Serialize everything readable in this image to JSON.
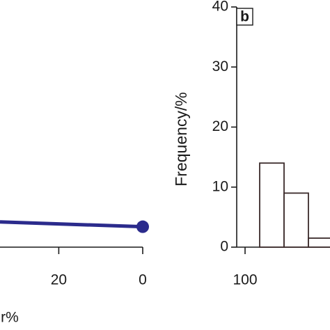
{
  "chart_data": [
    {
      "type": "line",
      "x_label": "r%",
      "x": [
        34,
        0
      ],
      "xlim": [
        34,
        0
      ],
      "xticks": [
        20,
        0
      ],
      "ylim": [
        0,
        40
      ],
      "series": [
        {
          "color": "#2b2b8c",
          "values": [
            4.2,
            3.4
          ]
        }
      ]
    },
    {
      "type": "histogram",
      "panel_label": "b",
      "y_label": "Frequency/%",
      "bins": [
        106,
        116,
        126,
        136
      ],
      "values": [
        14,
        9,
        1.5
      ],
      "color": "#ffffff",
      "edge_color": "#3a2a2a",
      "xlim": [
        100,
        136
      ],
      "xticks": [
        100
      ],
      "ylim": [
        0,
        40
      ],
      "yticks": [
        0,
        10,
        20,
        30,
        40
      ]
    }
  ]
}
